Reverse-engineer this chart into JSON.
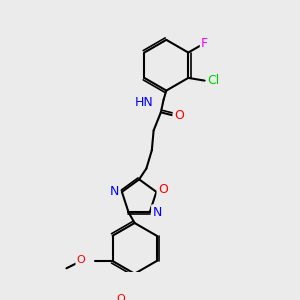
{
  "bg_color": "#ebebeb",
  "bond_color": "#000000",
  "bond_lw": 1.5,
  "atom_colors": {
    "N": "#0000ff",
    "O": "#ff0000",
    "Cl": "#00cc00",
    "F": "#ff00ff",
    "H": "#000000"
  },
  "font_size": 9,
  "font_size_small": 8
}
